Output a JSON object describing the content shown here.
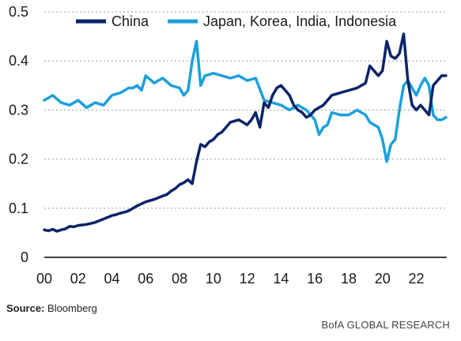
{
  "chart_data": {
    "type": "line",
    "x_tick_labels": [
      "00",
      "02",
      "04",
      "06",
      "08",
      "10",
      "12",
      "14",
      "16",
      "18",
      "20",
      "22"
    ],
    "y_tick_labels": [
      "0",
      "0.1",
      "0.2",
      "0.3",
      "0.4",
      "0.5"
    ],
    "xlim": [
      2000,
      2023.8
    ],
    "ylim": [
      0,
      0.5
    ],
    "grid": "horizontal dashed",
    "legend_position": "top",
    "series": [
      {
        "name": "China",
        "color": "#0a2468",
        "x": [
          2000,
          2000.25,
          2000.5,
          2000.75,
          2001,
          2001.25,
          2001.5,
          2001.75,
          2002,
          2002.5,
          2003,
          2003.5,
          2004,
          2004.25,
          2004.5,
          2004.75,
          2005,
          2005.5,
          2006,
          2006.5,
          2007,
          2007.25,
          2007.5,
          2007.75,
          2008,
          2008.25,
          2008.5,
          2008.75,
          2009,
          2009.25,
          2009.5,
          2009.75,
          2010,
          2010.25,
          2010.5,
          2010.75,
          2011,
          2011.5,
          2012,
          2012.25,
          2012.5,
          2012.75,
          2013,
          2013.25,
          2013.5,
          2013.75,
          2014,
          2014.25,
          2014.5,
          2014.75,
          2015,
          2015.25,
          2015.5,
          2015.75,
          2016,
          2016.5,
          2017,
          2017.5,
          2018,
          2018.5,
          2019,
          2019.25,
          2019.5,
          2019.75,
          2020,
          2020.25,
          2020.5,
          2020.75,
          2021,
          2021.25,
          2021.5,
          2021.75,
          2022,
          2022.25,
          2022.5,
          2022.75,
          2023,
          2023.25,
          2023.5,
          2023.75
        ],
        "values": [
          0.056,
          0.054,
          0.057,
          0.053,
          0.056,
          0.058,
          0.063,
          0.062,
          0.065,
          0.067,
          0.071,
          0.078,
          0.085,
          0.087,
          0.09,
          0.092,
          0.095,
          0.105,
          0.113,
          0.118,
          0.125,
          0.128,
          0.135,
          0.14,
          0.148,
          0.152,
          0.158,
          0.15,
          0.195,
          0.23,
          0.225,
          0.235,
          0.24,
          0.25,
          0.255,
          0.265,
          0.275,
          0.28,
          0.27,
          0.28,
          0.295,
          0.265,
          0.315,
          0.305,
          0.33,
          0.345,
          0.35,
          0.34,
          0.33,
          0.31,
          0.3,
          0.295,
          0.285,
          0.29,
          0.3,
          0.31,
          0.33,
          0.335,
          0.34,
          0.345,
          0.355,
          0.39,
          0.38,
          0.37,
          0.38,
          0.44,
          0.41,
          0.405,
          0.415,
          0.455,
          0.36,
          0.31,
          0.3,
          0.31,
          0.3,
          0.29,
          0.35,
          0.36,
          0.37,
          0.37
        ]
      },
      {
        "name": "Japan, Korea, India, Indonesia",
        "color": "#1ca0dc",
        "x": [
          2000,
          2000.5,
          2001,
          2001.5,
          2002,
          2002.5,
          2003,
          2003.5,
          2004,
          2004.5,
          2005,
          2005.25,
          2005.5,
          2005.75,
          2006,
          2006.5,
          2007,
          2007.5,
          2008,
          2008.25,
          2008.5,
          2008.75,
          2009,
          2009.25,
          2009.5,
          2010,
          2010.5,
          2011,
          2011.5,
          2012,
          2012.5,
          2013,
          2013.5,
          2014,
          2014.5,
          2015,
          2015.5,
          2016,
          2016.25,
          2016.5,
          2016.75,
          2017,
          2017.5,
          2018,
          2018.5,
          2019,
          2019.25,
          2019.5,
          2019.75,
          2020,
          2020.25,
          2020.5,
          2020.75,
          2021,
          2021.25,
          2021.5,
          2021.75,
          2022,
          2022.25,
          2022.5,
          2022.75,
          2023,
          2023.25,
          2023.5,
          2023.75
        ],
        "values": [
          0.32,
          0.33,
          0.315,
          0.31,
          0.32,
          0.305,
          0.315,
          0.31,
          0.33,
          0.335,
          0.345,
          0.345,
          0.35,
          0.34,
          0.37,
          0.355,
          0.365,
          0.35,
          0.345,
          0.33,
          0.34,
          0.4,
          0.44,
          0.35,
          0.37,
          0.375,
          0.37,
          0.365,
          0.37,
          0.36,
          0.365,
          0.32,
          0.315,
          0.31,
          0.3,
          0.31,
          0.3,
          0.28,
          0.25,
          0.265,
          0.27,
          0.295,
          0.29,
          0.29,
          0.3,
          0.29,
          0.275,
          0.27,
          0.265,
          0.24,
          0.195,
          0.23,
          0.24,
          0.3,
          0.35,
          0.36,
          0.345,
          0.33,
          0.35,
          0.365,
          0.35,
          0.29,
          0.28,
          0.28,
          0.285
        ]
      }
    ]
  },
  "footer": {
    "source_label": "Source:",
    "source_value": "Bloomberg",
    "credit": "BofA GLOBAL RESEARCH"
  }
}
